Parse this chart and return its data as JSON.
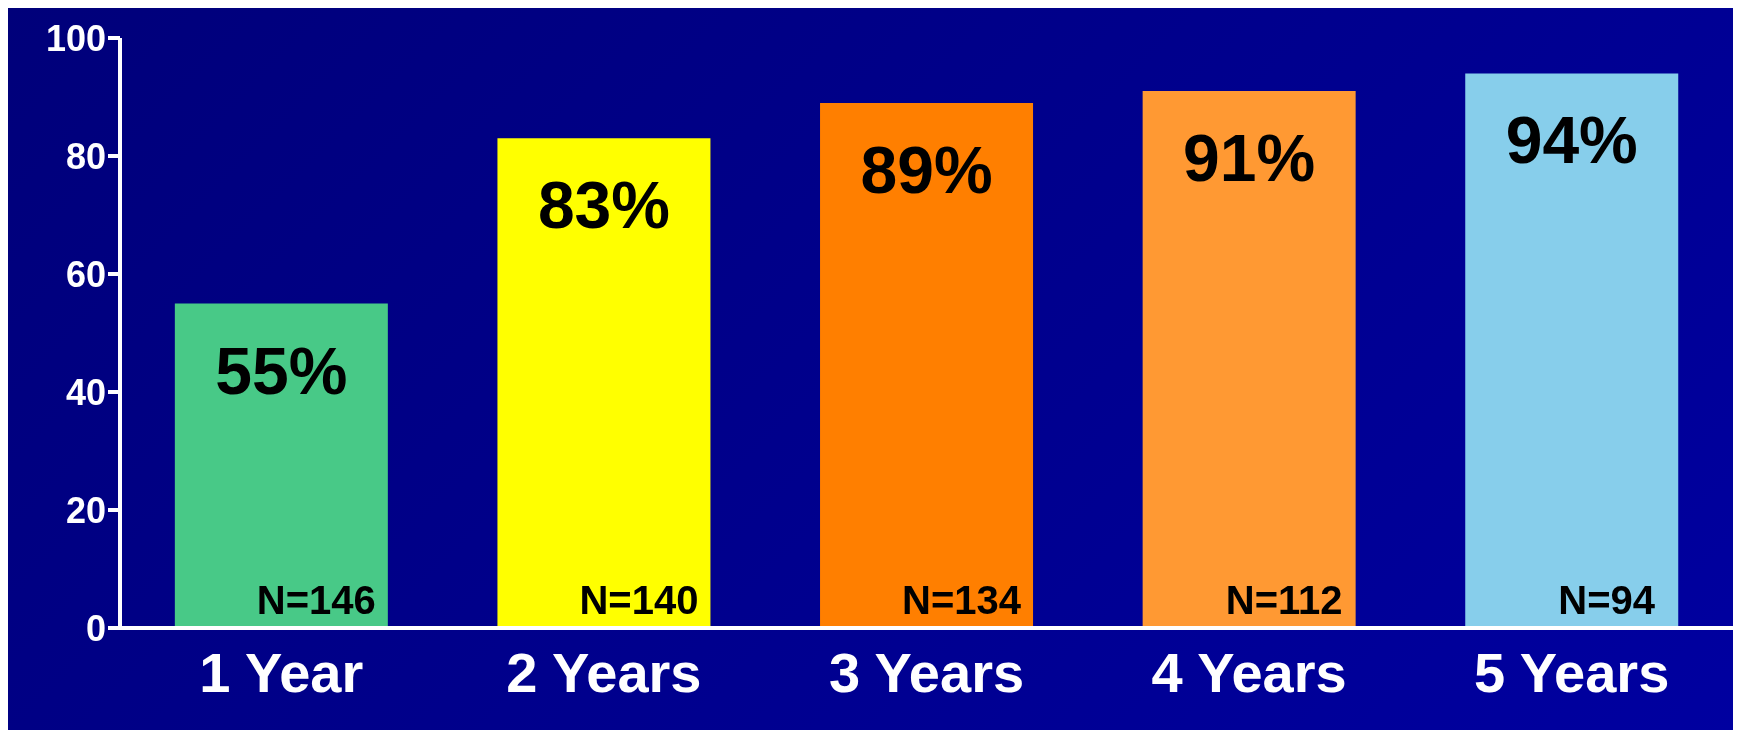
{
  "chart_data": {
    "type": "bar",
    "categories": [
      "1 Year",
      "2 Years",
      "3 Years",
      "4 Years",
      "5 Years"
    ],
    "values": [
      55,
      83,
      89,
      91,
      94
    ],
    "colors": [
      "#48c987",
      "#ffff00",
      "#ff7f00",
      "#ff9933",
      "#87ceeb"
    ],
    "value_labels": [
      "55%",
      "83%",
      "89%",
      "91%",
      "94%"
    ],
    "ylim": [
      0,
      100
    ],
    "yticks": [
      0,
      20,
      40,
      60,
      80,
      100
    ],
    "grid": false,
    "legend": false,
    "annotations": [
      "N=146",
      "N=140",
      "N=134",
      "N=112",
      "N=94"
    ]
  }
}
